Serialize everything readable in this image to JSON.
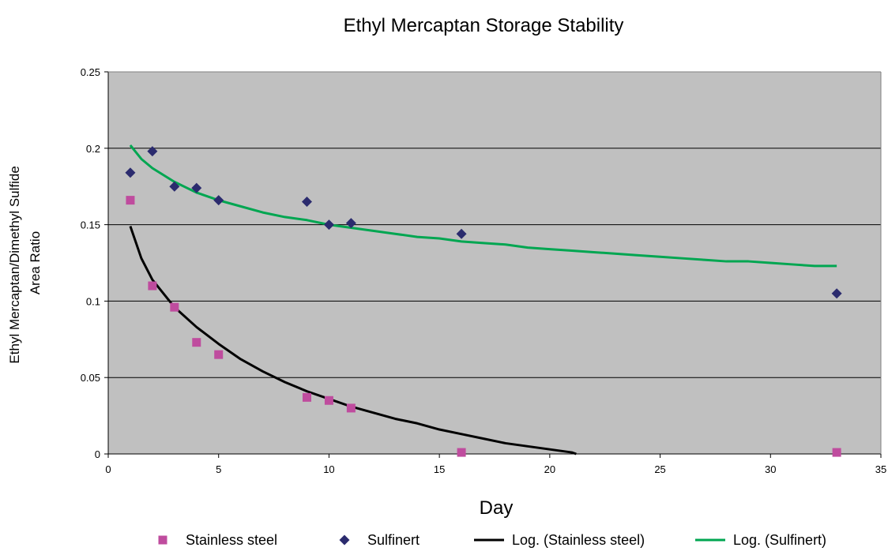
{
  "chart_data": {
    "type": "scatter",
    "title": "Ethyl Mercaptan Storage Stability",
    "xlabel": "Day",
    "ylabel_lines": [
      "Ethyl Mercaptan/Dimethyl Sulfide",
      "Area Ratio"
    ],
    "xlim": [
      0,
      35
    ],
    "ylim": [
      0,
      0.25
    ],
    "x_ticks": [
      0,
      5,
      10,
      15,
      20,
      25,
      30,
      35
    ],
    "x_tick_labels": [
      "0",
      "5",
      "10",
      "15",
      "20",
      "25",
      "30",
      "35"
    ],
    "y_ticks": [
      0,
      0.05,
      0.1,
      0.15,
      0.2,
      0.25
    ],
    "y_tick_labels": [
      "0",
      "0.05",
      "0.1",
      "0.15",
      "0.2",
      "0.25"
    ],
    "grid": "horizontal",
    "plot_background": "#c0c0c0",
    "legend_placement": "bottom",
    "series": [
      {
        "name": "Stainless steel",
        "kind": "points",
        "marker": "square",
        "color": "#bf4c9e",
        "x": [
          1,
          2,
          3,
          4,
          5,
          9,
          10,
          11,
          16,
          33
        ],
        "y": [
          0.166,
          0.11,
          0.096,
          0.073,
          0.065,
          0.037,
          0.035,
          0.03,
          0.001,
          0.001
        ]
      },
      {
        "name": "Sulfinert",
        "kind": "points",
        "marker": "diamond",
        "color": "#2b2b6e",
        "x": [
          1,
          2,
          3,
          4,
          5,
          9,
          10,
          11,
          16,
          33
        ],
        "y": [
          0.184,
          0.198,
          0.175,
          0.174,
          0.166,
          0.165,
          0.15,
          0.151,
          0.144,
          0.105
        ]
      },
      {
        "name": "Log. (Stainless steel)",
        "kind": "trendline",
        "color": "#000000",
        "x": [
          1,
          1.5,
          2,
          3,
          4,
          5,
          6,
          7,
          8,
          9,
          10,
          11,
          12,
          13,
          14,
          15,
          16,
          17,
          18,
          19,
          20,
          21,
          21.2
        ],
        "y": [
          0.149,
          0.128,
          0.114,
          0.096,
          0.083,
          0.072,
          0.062,
          0.054,
          0.047,
          0.041,
          0.036,
          0.031,
          0.027,
          0.023,
          0.02,
          0.016,
          0.013,
          0.01,
          0.007,
          0.005,
          0.003,
          0.001,
          0.0
        ]
      },
      {
        "name": "Log. (Sulfinert)",
        "kind": "trendline",
        "color": "#00a651",
        "x": [
          1,
          1.5,
          2,
          3,
          4,
          5,
          6,
          7,
          8,
          9,
          10,
          11,
          12,
          13,
          14,
          15,
          16,
          17,
          18,
          19,
          20,
          21,
          22,
          23,
          24,
          25,
          26,
          27,
          28,
          29,
          30,
          31,
          32,
          33
        ],
        "y": [
          0.202,
          0.193,
          0.187,
          0.178,
          0.171,
          0.166,
          0.162,
          0.158,
          0.155,
          0.153,
          0.15,
          0.148,
          0.146,
          0.144,
          0.142,
          0.141,
          0.139,
          0.138,
          0.137,
          0.135,
          0.134,
          0.133,
          0.132,
          0.131,
          0.13,
          0.129,
          0.128,
          0.127,
          0.126,
          0.126,
          0.125,
          0.124,
          0.123,
          0.123
        ]
      }
    ]
  }
}
